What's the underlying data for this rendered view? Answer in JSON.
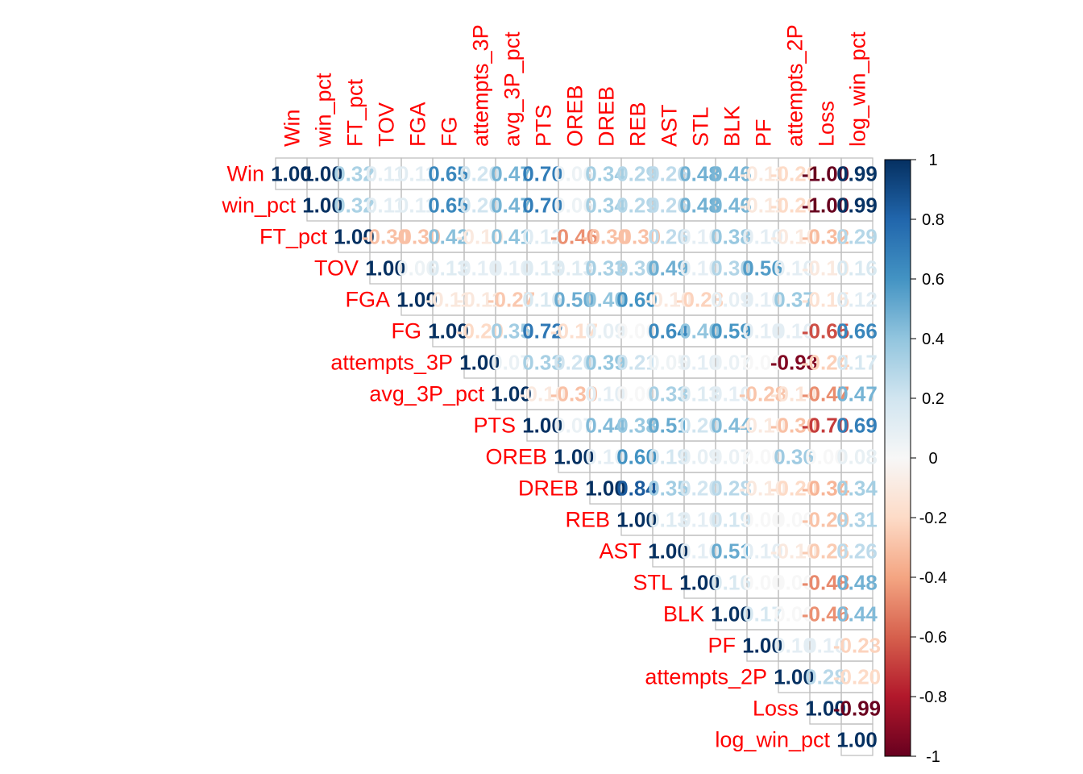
{
  "chart_data": {
    "type": "heatmap",
    "variables": [
      "Win",
      "win_pct",
      "FT_pct",
      "TOV",
      "FGA",
      "FG",
      "attempts_3P",
      "avg_3P_pct",
      "PTS",
      "OREB",
      "DREB",
      "REB",
      "AST",
      "STL",
      "BLK",
      "PF",
      "attempts_2P",
      "Loss",
      "log_win_pct"
    ],
    "layout": "upper triangle, row labels at diagonal, column labels rotated on top",
    "colorbar": {
      "ticks": [
        "1",
        "0.8",
        "0.6",
        "0.4",
        "0.2",
        "0",
        "-0.2",
        "-0.4",
        "-0.6",
        "-0.8",
        "-1"
      ],
      "low_color": "#67001F",
      "mid_color": "#F7F7F7",
      "high_color": "#053061"
    },
    "label_color": "#FF0000",
    "matrix": [
      [
        1.0,
        1.0,
        0.32,
        0.11,
        0.11,
        0.65,
        0.2,
        0.47,
        0.7,
        0.06,
        0.34,
        0.29,
        0.26,
        0.48,
        0.46,
        -0.11,
        -0.2,
        -1.0,
        0.99
      ],
      [
        1.0,
        1.0,
        0.32,
        0.11,
        0.11,
        0.65,
        0.2,
        0.47,
        0.7,
        0.06,
        0.34,
        0.29,
        0.26,
        0.48,
        0.46,
        -0.11,
        -0.2,
        -1.0,
        0.99
      ],
      [
        0.32,
        0.32,
        1.0,
        -0.3,
        -0.3,
        0.42,
        -0.1,
        0.41,
        0.12,
        -0.46,
        -0.3,
        -0.3,
        0.26,
        0.1,
        0.38,
        0.1,
        -0.1,
        -0.32,
        0.29
      ],
      [
        0.11,
        0.11,
        -0.3,
        1.0,
        0.06,
        0.13,
        0.1,
        0.1,
        0.13,
        0.13,
        0.33,
        0.3,
        0.49,
        0.1,
        0.3,
        0.56,
        0.1,
        -0.1,
        0.16
      ],
      [
        0.11,
        0.11,
        -0.3,
        0.06,
        1.0,
        -0.11,
        -0.11,
        -0.27,
        0.16,
        0.5,
        0.4,
        0.6,
        -0.1,
        -0.23,
        0.09,
        0.1,
        0.37,
        -0.15,
        0.12
      ],
      [
        0.65,
        0.65,
        0.42,
        0.13,
        -0.11,
        1.0,
        -0.2,
        0.35,
        0.72,
        -0.17,
        0.09,
        0.0,
        0.64,
        0.4,
        0.59,
        0.1,
        0.1,
        -0.65,
        0.66
      ],
      [
        0.2,
        0.2,
        -0.1,
        0.1,
        -0.11,
        -0.2,
        1.0,
        0.07,
        0.33,
        0.2,
        0.39,
        0.21,
        0.05,
        0.1,
        0.07,
        0.0,
        -0.93,
        -0.24,
        0.17
      ],
      [
        0.47,
        0.47,
        0.41,
        0.1,
        -0.27,
        0.35,
        0.07,
        1.0,
        -0.1,
        -0.3,
        0.1,
        0.0,
        0.33,
        0.13,
        0.1,
        -0.28,
        -0.14,
        -0.47,
        0.47
      ],
      [
        0.7,
        0.7,
        0.12,
        0.13,
        0.16,
        0.72,
        0.33,
        -0.1,
        1.0,
        0.07,
        0.44,
        0.38,
        0.51,
        0.2,
        0.44,
        -0.1,
        -0.3,
        -0.7,
        0.69
      ],
      [
        0.06,
        0.06,
        -0.46,
        0.13,
        0.5,
        -0.17,
        0.2,
        -0.3,
        0.07,
        1.0,
        0.1,
        0.6,
        0.19,
        0.09,
        0.07,
        0.0,
        0.36,
        0.0,
        0.08
      ],
      [
        0.34,
        0.34,
        -0.3,
        0.33,
        0.4,
        0.09,
        0.39,
        0.1,
        0.44,
        0.1,
        1.0,
        0.84,
        0.35,
        0.2,
        0.28,
        -0.1,
        -0.2,
        -0.34,
        0.34
      ],
      [
        0.29,
        0.29,
        -0.3,
        0.3,
        0.6,
        0.0,
        0.21,
        0.0,
        0.38,
        0.6,
        0.84,
        1.0,
        0.13,
        0.1,
        0.19,
        0.0,
        0.0,
        -0.29,
        0.31
      ],
      [
        0.26,
        0.26,
        0.26,
        0.49,
        -0.1,
        0.64,
        0.05,
        0.33,
        0.51,
        0.19,
        0.35,
        0.13,
        1.0,
        0.1,
        0.51,
        0.1,
        -0.1,
        -0.26,
        0.26
      ],
      [
        0.48,
        0.48,
        0.1,
        0.1,
        -0.23,
        0.4,
        0.1,
        0.13,
        0.2,
        0.09,
        0.2,
        0.1,
        0.1,
        1.0,
        0.16,
        0.0,
        0.0,
        -0.48,
        0.48
      ],
      [
        0.46,
        0.46,
        0.38,
        0.3,
        0.09,
        0.59,
        0.07,
        0.1,
        0.44,
        0.07,
        0.28,
        0.19,
        0.51,
        0.16,
        1.0,
        0.17,
        0.0,
        -0.46,
        0.44
      ],
      [
        -0.11,
        -0.11,
        0.1,
        0.56,
        0.1,
        0.1,
        0.0,
        -0.28,
        -0.1,
        0.0,
        -0.1,
        0.0,
        0.1,
        0.0,
        0.17,
        1.0,
        0.1,
        0.1,
        -0.23
      ],
      [
        -0.2,
        -0.2,
        -0.1,
        0.1,
        0.37,
        0.1,
        -0.93,
        -0.14,
        -0.3,
        0.36,
        -0.2,
        0.0,
        -0.1,
        0.0,
        0.0,
        0.1,
        1.0,
        0.28,
        -0.2
      ],
      [
        -1.0,
        -1.0,
        -0.32,
        -0.1,
        -0.15,
        -0.65,
        -0.24,
        -0.47,
        -0.7,
        0.0,
        -0.34,
        -0.29,
        -0.26,
        -0.48,
        -0.46,
        0.1,
        0.28,
        1.0,
        -0.99
      ],
      [
        0.99,
        0.99,
        0.29,
        0.16,
        0.12,
        0.66,
        0.17,
        0.47,
        0.69,
        0.08,
        0.34,
        0.31,
        0.26,
        0.48,
        0.44,
        -0.23,
        -0.2,
        -0.99,
        1.0
      ]
    ]
  }
}
